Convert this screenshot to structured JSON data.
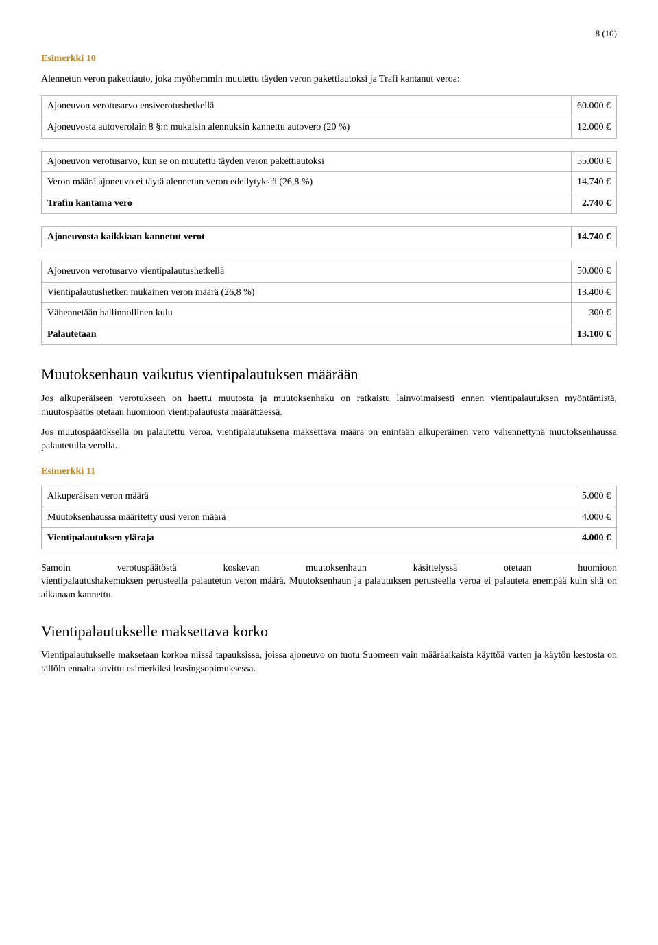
{
  "page_number": "8 (10)",
  "example10": {
    "heading": "Esimerkki 10",
    "intro": "Alennetun veron pakettiauto, joka myöhemmin muutettu täyden veron pakettiautoksi ja Trafi kantanut veroa:",
    "table1": [
      {
        "label": "Ajoneuvon verotusarvo ensiverotushetkellä",
        "value": "60.000 €"
      },
      {
        "label": "Ajoneuvosta autoverolain 8 §:n mukaisin alennuksin kannettu autovero (20 %)",
        "value": "12.000 €"
      }
    ],
    "table2": [
      {
        "label": "Ajoneuvon verotusarvo, kun se on muutettu täyden veron pakettiautoksi",
        "value": "55.000 €"
      },
      {
        "label": "Veron määrä ajoneuvo ei täytä alennetun veron edellytyksiä (26,8 %)",
        "value": "14.740 €"
      },
      {
        "label": "Trafin kantama vero",
        "value": "2.740 €",
        "bold": true
      }
    ],
    "table3": [
      {
        "label": "Ajoneuvosta kaikkiaan kannetut verot",
        "value": "14.740 €",
        "bold": true
      }
    ],
    "table4": [
      {
        "label": "Ajoneuvon verotusarvo vientipalautushetkellä",
        "value": "50.000 €"
      },
      {
        "label": "Vientipalautushetken mukainen veron määrä (26,8 %)",
        "value": "13.400 €"
      },
      {
        "label": "Vähennetään hallinnollinen kulu",
        "value": "300 €"
      },
      {
        "label": "Palautetaan",
        "value": "13.100 €",
        "bold": true
      }
    ]
  },
  "section1": {
    "heading": "Muutoksenhaun vaikutus vientipalautuksen määrään",
    "p1": "Jos alkuperäiseen verotukseen on haettu muutosta ja muutoksenhaku on ratkaistu lainvoimaisesti ennen vientipalautuksen myöntämistä, muutospäätös otetaan huomioon vientipalautusta määrättäessä.",
    "p2": "Jos muutospäätöksellä on palautettu veroa, vientipalautuksena maksettava määrä on enintään alkuperäinen vero vähennettynä muutoksenhaussa palautetulla verolla."
  },
  "example11": {
    "heading": "Esimerkki 11",
    "table": [
      {
        "label": "Alkuperäisen veron määrä",
        "value": "5.000 €"
      },
      {
        "label": "Muutoksenhaussa määritetty uusi veron määrä",
        "value": "4.000 €"
      },
      {
        "label": "Vientipalautuksen yläraja",
        "value": "4.000 €",
        "bold": true
      }
    ],
    "after": "Samoin verotuspäätöstä koskevan muutoksenhaun käsittelyssä otetaan huomioon vientipalautushakemuksen perusteella palautetun veron määrä. Muutoksenhaun ja palautuksen perusteella veroa ei palauteta enempää kuin sitä on aikanaan kannettu."
  },
  "section2": {
    "heading": "Vientipalautukselle maksettava korko",
    "p1": "Vientipalautukselle maksetaan korkoa niissä tapauksissa, joissa ajoneuvo on tuotu Suomeen vain määräaikaista käyttöä varten ja käytön kestosta on tällöin ennalta sovittu esimerkiksi leasingsopimuksessa."
  }
}
